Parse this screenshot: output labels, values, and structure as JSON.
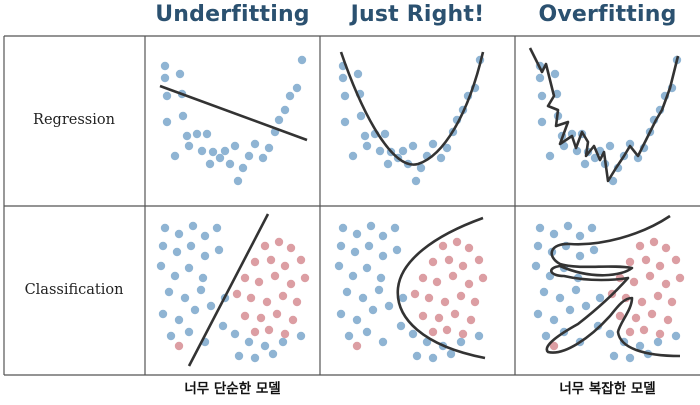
{
  "columns": {
    "underfitting": "Underfitting",
    "just_right": "Just Right!",
    "overfitting": "Overfitting"
  },
  "rows": {
    "regression": "Regression",
    "classification": "Classification"
  },
  "footnotes": {
    "simple": "너무 단순한 모델",
    "complex": "너무 복잡한 모델"
  },
  "colors": {
    "title": "#2b5170",
    "blue_point": "#8fb4d3",
    "red_point": "#dc9ea3",
    "curve": "#333333"
  }
}
